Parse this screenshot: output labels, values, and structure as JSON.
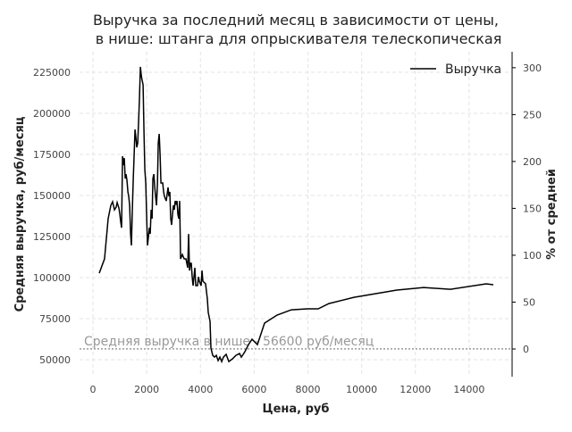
{
  "chart_data": {
    "type": "line",
    "title": "Выручка за последний месяц в зависимости от цены,",
    "subtitle": "в нише: штанга для опрыскивателя телескопическая",
    "x_label": "Цена, руб",
    "y_label": "Средняя выручка, руб/месяц",
    "y2_label": "% от средней",
    "x": [
      233,
      430,
      565,
      665,
      730,
      800,
      865,
      900,
      965,
      1000,
      1030,
      1065,
      1100,
      1130,
      1165,
      1200,
      1230,
      1265,
      1300,
      1330,
      1365,
      1400,
      1430,
      1465,
      1500,
      1530,
      1565,
      1600,
      1630,
      1665,
      1700,
      1730,
      1765,
      1800,
      1830,
      1865,
      1900,
      1930,
      1965,
      2000,
      2030,
      2065,
      2100,
      2130,
      2165,
      2200,
      2230,
      2265,
      2300,
      2330,
      2365,
      2400,
      2430,
      2465,
      2500,
      2530,
      2595,
      2630,
      2660,
      2727,
      2794,
      2827,
      2860,
      2893,
      2927,
      2960,
      2993,
      3027,
      3060,
      3093,
      3127,
      3160,
      3193,
      3226,
      3260,
      3326,
      3393,
      3460,
      3526,
      3560,
      3592,
      3626,
      3659,
      3692,
      3726,
      3759,
      3792,
      3826,
      3892,
      3925,
      3958,
      4025,
      4058,
      4091,
      4124,
      4191,
      4257,
      4290,
      4357,
      4390,
      4457,
      4523,
      4590,
      4657,
      4723,
      4790,
      4856,
      4956,
      5056,
      5189,
      5322,
      5455,
      5522,
      5655,
      5787,
      5920,
      6120,
      6386,
      6851,
      7384,
      7982,
      8382,
      8781,
      9712,
      11308,
      12306,
      13304,
      14634,
      14900
    ],
    "series": [
      {
        "name": "Выручка",
        "color": "#000000",
        "values": [
          102700,
          111400,
          135900,
          144000,
          146200,
          141300,
          143000,
          145700,
          142400,
          138600,
          134200,
          130400,
          173900,
          168500,
          172800,
          160300,
          163000,
          159200,
          152200,
          149500,
          144000,
          126600,
          119600,
          141300,
          160300,
          173900,
          190200,
          184800,
          179300,
          182000,
          195700,
          209200,
          228300,
          222800,
          220100,
          217400,
          187500,
          165800,
          157600,
          135900,
          119600,
          125000,
          130400,
          126600,
          141300,
          135900,
          160300,
          163000,
          154900,
          149500,
          144000,
          157600,
          182000,
          187500,
          173900,
          157600,
          157600,
          152200,
          149500,
          146700,
          154900,
          149500,
          152200,
          135900,
          132100,
          138600,
          144000,
          141300,
          146700,
          145100,
          146700,
          138600,
          135900,
          146700,
          111400,
          114100,
          111400,
          111400,
          106000,
          126600,
          104300,
          108700,
          108700,
          100500,
          95100,
          100500,
          106000,
          95100,
          95100,
          100500,
          97800,
          95100,
          104300,
          97800,
          97300,
          96200,
          87000,
          78800,
          73400,
          57100,
          52700,
          51600,
          52700,
          49500,
          51600,
          48900,
          51600,
          53300,
          48900,
          50500,
          52700,
          53800,
          51600,
          54900,
          59200,
          62500,
          59200,
          72300,
          77200,
          80400,
          81000,
          81000,
          84200,
          88000,
          92400,
          94000,
          92900,
          96200,
          95700
        ]
      }
    ],
    "reference_line": {
      "value": 56600,
      "label": "Средняя выручка в нише - 56600 руб/месяц",
      "color": "#999999"
    },
    "xlim": [
      -500,
      15600
    ],
    "ylim": [
      39700,
      237500
    ],
    "y2lim": [
      -29.5,
      317
    ],
    "xticks": [
      0,
      2000,
      4000,
      6000,
      8000,
      10000,
      12000,
      14000
    ],
    "yticks": [
      50000,
      75000,
      100000,
      125000,
      150000,
      175000,
      200000,
      225000
    ],
    "y2ticks": [
      0,
      50,
      100,
      150,
      200,
      250,
      300
    ],
    "grid": true,
    "legend": "upper right"
  }
}
